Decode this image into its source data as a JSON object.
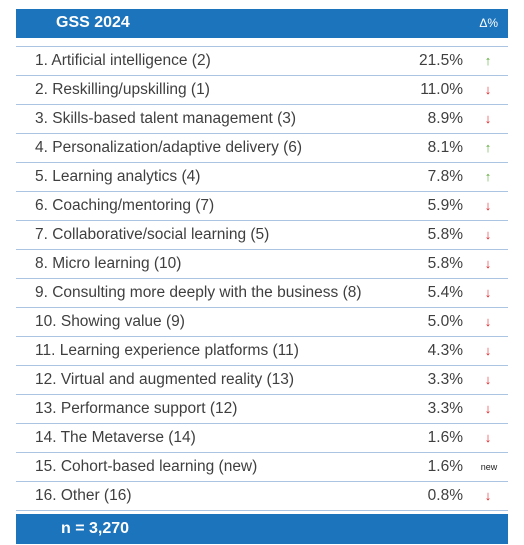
{
  "header": {
    "title": "GSS 2024",
    "delta_label": "Δ%"
  },
  "rows": [
    {
      "label": "1. Artificial intelligence (2)",
      "pct": "21.5%",
      "trend": "up"
    },
    {
      "label": "2. Reskilling/upskilling (1)",
      "pct": "11.0%",
      "trend": "down"
    },
    {
      "label": "3. Skills-based talent management (3)",
      "pct": "8.9%",
      "trend": "down"
    },
    {
      "label": "4. Personalization/adaptive delivery (6)",
      "pct": "8.1%",
      "trend": "up"
    },
    {
      "label": "5. Learning analytics (4)",
      "pct": "7.8%",
      "trend": "up"
    },
    {
      "label": "6. Coaching/mentoring (7)",
      "pct": "5.9%",
      "trend": "down"
    },
    {
      "label": "7. Collaborative/social learning (5)",
      "pct": "5.8%",
      "trend": "down"
    },
    {
      "label": "8. Micro learning (10)",
      "pct": "5.8%",
      "trend": "down"
    },
    {
      "label": "9. Consulting more deeply with the business (8)",
      "pct": "5.4%",
      "trend": "down"
    },
    {
      "label": "10. Showing value (9)",
      "pct": "5.0%",
      "trend": "down"
    },
    {
      "label": "11. Learning experience platforms (11)",
      "pct": "4.3%",
      "trend": "down"
    },
    {
      "label": "12. Virtual and augmented reality (13)",
      "pct": "3.3%",
      "trend": "down"
    },
    {
      "label": "13. Performance support (12)",
      "pct": "3.3%",
      "trend": "down"
    },
    {
      "label": "14. The Metaverse (14)",
      "pct": "1.6%",
      "trend": "down"
    },
    {
      "label": "15. Cohort-based learning (new)",
      "pct": "1.6%",
      "trend": "new",
      "trend_text": "new"
    },
    {
      "label": "16. Other (16)",
      "pct": "0.8%",
      "trend": "down"
    }
  ],
  "footer": {
    "n_label": "n = 3,270"
  },
  "colors": {
    "header_bg": "#1c74bc",
    "up": "#5aac37",
    "down": "#e01e22",
    "row_border": "#aac4e2"
  }
}
